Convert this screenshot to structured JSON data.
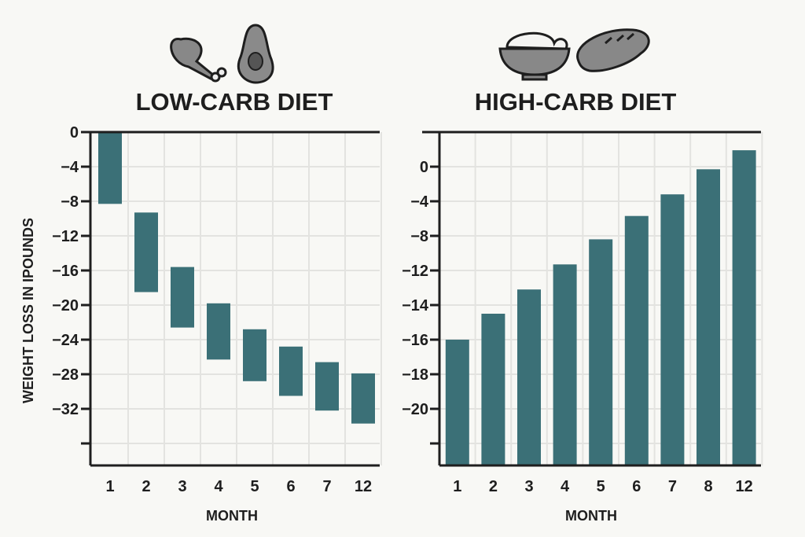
{
  "colors": {
    "bar": "#3b7077",
    "axis": "#1e1e1e",
    "grid": "#e3e3e0",
    "icon": "#888888",
    "background": "#f8f8f5"
  },
  "chart_data": [
    {
      "type": "bar",
      "subtype": "floating",
      "title": "LOW-CARB DIET",
      "icons": [
        "chicken-drumstick-icon",
        "avocado-icon"
      ],
      "xlabel": "MONTH",
      "ylabel": "WEIGHT LOSS IN IPOUNDS",
      "categories": [
        "1",
        "2",
        "3",
        "4",
        "5",
        "6",
        "7",
        "12"
      ],
      "y_tick_labels": [
        "0",
        "−4",
        "−8",
        "−12",
        "−16",
        "−20",
        "−24",
        "−28",
        "−32",
        ""
      ],
      "y_tick_values": [
        0,
        -4,
        -8,
        -12,
        -16,
        -20,
        -24,
        -28,
        -32,
        -36
      ],
      "ylim": [
        -38,
        0
      ],
      "ranges": [
        [
          0,
          -8.3
        ],
        [
          -9.3,
          -18.5
        ],
        [
          -15.6,
          -22.6
        ],
        [
          -19.8,
          -26.3
        ],
        [
          -22.8,
          -28.8
        ],
        [
          -24.8,
          -30.5
        ],
        [
          -26.6,
          -32.2
        ],
        [
          -27.9,
          -33.7
        ]
      ],
      "grid": true
    },
    {
      "type": "bar",
      "title": "HIGH-CARB DIET",
      "icons": [
        "rice-bowl-icon",
        "bread-icon"
      ],
      "xlabel": "MONTH",
      "ylabel": "",
      "categories": [
        "1",
        "2",
        "3",
        "4",
        "5",
        "6",
        "7",
        "8",
        "12"
      ],
      "y_tick_labels": [
        "0",
        "−4",
        "−8",
        "−12",
        "−14",
        "−16",
        "−18",
        "−20",
        ""
      ],
      "y_tick_values": [
        0,
        -4,
        -8,
        -12,
        -14,
        -16,
        -18,
        -20,
        -22
      ],
      "values": [
        -16,
        -14.5,
        -13.1,
        -11.3,
        -8.4,
        -5.7,
        -3.2,
        -0.3,
        1.9
      ],
      "grid": true
    }
  ]
}
